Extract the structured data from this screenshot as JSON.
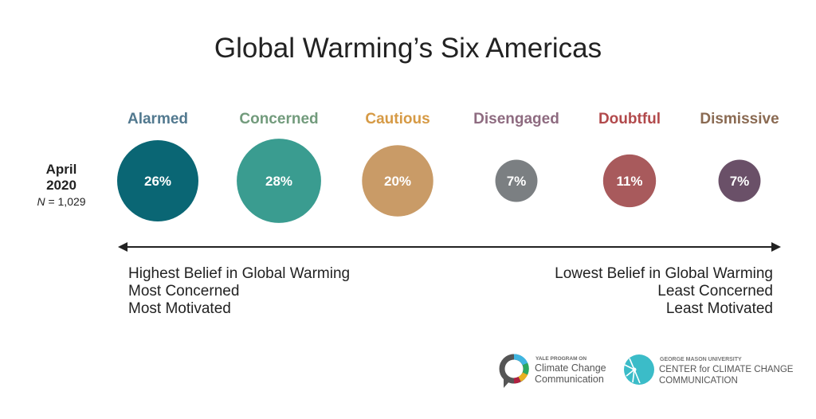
{
  "chart_data": {
    "type": "bubble",
    "title": "Global Warming’s Six Americas",
    "row_label": {
      "line1": "April",
      "line2": "2020",
      "n_label": "N",
      "n_value": "= 1,029"
    },
    "unit": "%",
    "categories": [
      "Alarmed",
      "Concerned",
      "Cautious",
      "Disengaged",
      "Doubtful",
      "Dismissive"
    ],
    "values": [
      26,
      28,
      20,
      7,
      11,
      7
    ],
    "value_labels": [
      "26%",
      "28%",
      "20%",
      "7%",
      "11%",
      "7%"
    ],
    "circle_colors": [
      "#0a6674",
      "#3a9c90",
      "#c99b67",
      "#7b7f82",
      "#a85a5c",
      "#6a5068"
    ],
    "label_colors": [
      "#52798f",
      "#729b7c",
      "#d69a45",
      "#8e6b80",
      "#b24a4c",
      "#8a6a52"
    ],
    "axis": {
      "left": [
        "Highest Belief in Global Warming",
        "Most Concerned",
        "Most Motivated"
      ],
      "right": [
        "Lowest Belief in Global Warming",
        "Least Concerned",
        "Least Motivated"
      ]
    }
  },
  "logos": {
    "yale": {
      "small": "YALE PROGRAM ON",
      "line1": "Climate Change",
      "line2": "Communication"
    },
    "gmu": {
      "small": "GEORGE MASON UNIVERSITY",
      "line1": "CENTER for CLIMATE CHANGE",
      "line2": "COMMUNICATION"
    }
  }
}
